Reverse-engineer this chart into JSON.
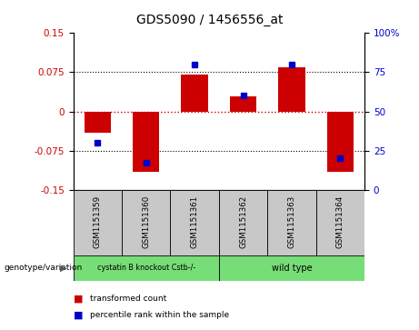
{
  "title": "GDS5090 / 1456556_at",
  "samples": [
    "GSM1151359",
    "GSM1151360",
    "GSM1151361",
    "GSM1151362",
    "GSM1151363",
    "GSM1151364"
  ],
  "red_values": [
    -0.04,
    -0.115,
    0.07,
    0.028,
    0.085,
    -0.115
  ],
  "blue_values": [
    30,
    17,
    80,
    60,
    80,
    20
  ],
  "ylim_left": [
    -0.15,
    0.15
  ],
  "ylim_right": [
    0,
    100
  ],
  "yticks_left": [
    -0.15,
    -0.075,
    0,
    0.075,
    0.15
  ],
  "yticks_right": [
    0,
    25,
    50,
    75,
    100
  ],
  "ytick_labels_right": [
    "0",
    "25",
    "50",
    "75",
    "100%"
  ],
  "group1_label": "cystatin B knockout Cstb-/-",
  "group2_label": "wild type",
  "group1_indices": [
    0,
    1,
    2
  ],
  "group2_indices": [
    3,
    4,
    5
  ],
  "group_color": "#77DD77",
  "bar_color": "#CC0000",
  "blue_color": "#0000CC",
  "legend_red": "transformed count",
  "legend_blue": "percentile rank within the sample",
  "genotype_label": "genotype/variation",
  "hline_color": "#CC0000",
  "dotline_color": "#000000",
  "bg_plot": "#ffffff",
  "bg_sample_row": "#C8C8C8",
  "title_fontsize": 10,
  "tick_fontsize": 7.5,
  "label_fontsize": 7
}
